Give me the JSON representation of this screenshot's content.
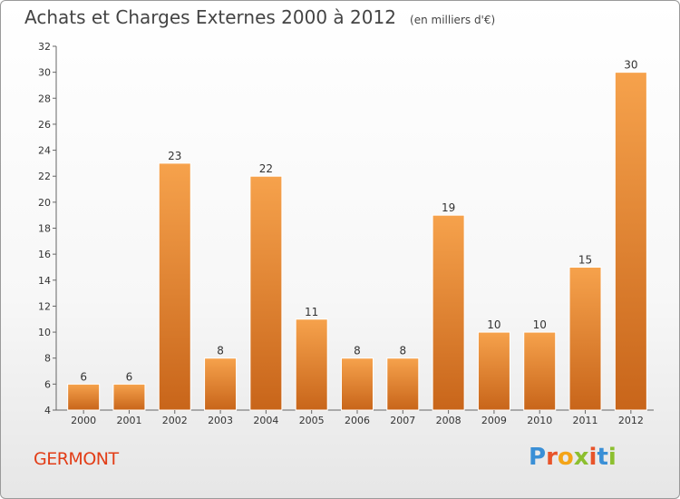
{
  "header": {
    "title": "Achats et Charges Externes 2000 à 2012",
    "subtitle": "(en milliers d'€)"
  },
  "footer": {
    "commune": "GERMONT",
    "logo_text": "Proxiti",
    "logo_colors": [
      "#3a8fd6",
      "#e8542a",
      "#f4a417",
      "#8cbf2f",
      "#e8542a",
      "#3a8fd6",
      "#8cbf2f"
    ]
  },
  "colors": {
    "bar_light": "#f6a24c",
    "bar_dark": "#c8651a",
    "title": "#444444",
    "commune": "#e23d17"
  },
  "chart_data": {
    "type": "bar",
    "title": "Achats et Charges Externes 2000 à 2012",
    "subtitle": "(en milliers d'€)",
    "xlabel": "",
    "ylabel": "",
    "categories": [
      "2000",
      "2001",
      "2002",
      "2003",
      "2004",
      "2005",
      "2006",
      "2007",
      "2008",
      "2009",
      "2010",
      "2011",
      "2012"
    ],
    "values": [
      6,
      6,
      23,
      8,
      22,
      11,
      8,
      8,
      19,
      10,
      10,
      15,
      30
    ],
    "data_labels": [
      "6",
      "6",
      "23",
      "8",
      "22",
      "11",
      "8",
      "8",
      "19",
      "10",
      "10",
      "15",
      "30"
    ],
    "ylim": [
      4,
      32
    ],
    "yticks": [
      4,
      6,
      8,
      10,
      12,
      14,
      16,
      18,
      20,
      22,
      24,
      26,
      28,
      30,
      32
    ],
    "grid": false,
    "legend": "none"
  }
}
